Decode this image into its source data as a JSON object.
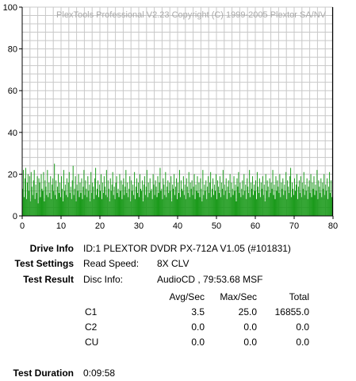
{
  "chart_data": {
    "type": "bar",
    "title": "PlexTools Professional V2.23 Copyright (C) 1999-2005 Plextor SA/NV",
    "xlim": [
      0,
      80
    ],
    "ylim": [
      0,
      100
    ],
    "x_ticks": [
      "0",
      "10",
      "20",
      "30",
      "40",
      "50",
      "60",
      "70",
      "80"
    ],
    "y_ticks": [
      "0",
      "20",
      "40",
      "60",
      "80",
      "100"
    ],
    "grid": true,
    "series": [
      {
        "color": "#1a9a1a",
        "x_step": 0.2,
        "values": [
          13,
          22,
          9,
          18,
          23,
          8,
          16,
          20,
          12,
          19,
          7,
          21,
          14,
          10,
          17,
          22,
          8,
          15,
          11,
          19,
          6,
          18,
          16,
          9,
          20,
          13,
          12,
          21,
          7,
          17,
          14,
          10,
          22,
          9,
          16,
          11,
          19,
          8,
          15,
          18,
          12,
          25,
          10,
          17,
          8,
          14,
          20,
          11,
          16,
          9,
          19,
          13,
          7,
          22,
          12,
          15,
          10,
          18,
          9,
          16,
          21,
          11,
          14,
          8,
          17,
          24,
          10,
          13,
          19,
          7,
          15,
          12,
          20,
          9,
          16,
          11,
          18,
          8,
          14,
          22,
          10,
          17,
          13,
          9,
          19,
          12,
          15,
          7,
          21,
          11,
          16,
          14,
          8,
          18,
          23,
          10,
          13,
          17,
          9,
          15,
          12,
          20,
          8,
          16,
          11,
          19,
          14,
          10,
          22,
          9,
          17,
          13,
          7,
          18,
          12,
          15,
          21,
          10,
          14,
          8,
          16,
          19,
          11,
          13,
          9,
          20,
          12,
          17,
          8,
          15,
          18,
          10,
          14,
          22,
          11,
          16,
          9,
          13,
          19,
          7,
          17,
          12,
          15,
          10,
          21,
          8,
          14,
          18,
          11,
          16,
          9,
          20,
          13,
          12,
          17,
          7,
          15,
          19,
          10,
          14,
          22,
          9,
          16,
          11,
          18,
          12,
          13,
          8,
          20,
          15,
          10,
          17,
          14,
          9,
          19,
          11,
          16,
          23,
          12,
          13,
          8,
          18,
          15,
          10,
          21,
          9,
          14,
          17,
          11,
          16,
          12,
          19,
          7,
          15,
          13,
          20,
          10,
          14,
          18,
          8,
          16,
          11,
          22,
          9,
          17,
          13,
          12,
          19,
          10,
          15,
          8,
          18,
          14,
          11,
          21,
          9,
          16,
          13,
          17,
          10,
          14,
          20,
          8,
          15,
          12,
          19,
          11,
          16,
          9,
          18,
          13,
          7,
          22,
          10,
          15,
          12,
          17,
          8,
          14,
          19,
          11,
          16,
          21,
          9,
          13,
          18,
          10,
          15,
          12,
          20,
          8,
          17,
          14,
          11,
          19,
          9,
          16,
          13,
          22,
          10,
          15,
          12,
          18,
          8,
          14,
          17,
          11,
          20,
          9,
          16,
          13,
          10,
          19,
          12,
          15,
          7,
          18,
          14,
          21,
          11,
          16,
          9,
          13,
          17,
          10,
          20,
          12,
          15,
          8,
          18,
          14,
          11,
          22,
          9,
          16,
          13,
          19,
          10,
          15,
          12,
          17,
          8,
          21,
          14,
          11,
          18,
          9,
          16,
          13,
          19,
          10,
          15,
          7,
          20,
          12,
          17,
          14,
          9,
          18,
          11,
          16,
          13,
          22,
          10,
          15,
          8,
          19,
          12,
          17,
          14,
          11,
          20,
          9,
          16,
          13,
          18,
          10,
          15,
          12,
          21,
          8,
          17,
          14,
          11,
          19,
          23,
          9,
          16,
          13,
          10,
          18,
          12,
          15,
          20,
          8,
          14,
          17,
          11,
          19,
          9,
          16,
          13,
          21,
          10,
          15,
          12,
          18,
          8,
          14,
          17,
          11,
          20,
          9,
          16,
          13,
          19,
          10,
          15,
          12,
          22,
          8,
          17,
          14,
          11,
          18,
          9,
          16,
          13,
          20,
          10,
          15,
          12,
          18,
          8,
          14,
          21,
          11,
          17,
          9,
          13
        ]
      }
    ],
    "end_line_x": 79.9
  },
  "drive_info": {
    "label": "Drive Info",
    "value": "ID:1 PLEXTOR DVDR PX-712A V1.05 (#101831)"
  },
  "test_settings": {
    "label": "Test Settings",
    "key": "Read Speed:",
    "value": "8X CLV"
  },
  "test_result": {
    "label": "Test Result",
    "key": "Disc Info:",
    "value": "AudioCD , 79:53.68 MSF"
  },
  "result_table": {
    "headers": [
      "Avg/Sec",
      "Max/Sec",
      "Total"
    ],
    "rows": [
      {
        "name": "C1",
        "avg": "3.5",
        "max": "25.0",
        "total": "16855.0"
      },
      {
        "name": "C2",
        "avg": "0.0",
        "max": "0.0",
        "total": "0.0"
      },
      {
        "name": "CU",
        "avg": "0.0",
        "max": "0.0",
        "total": "0.0"
      }
    ]
  },
  "test_duration": {
    "label": "Test Duration",
    "value": "0:09:58"
  }
}
